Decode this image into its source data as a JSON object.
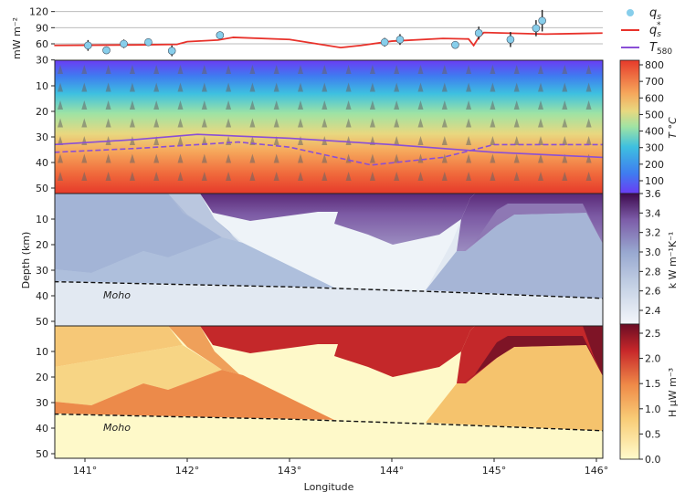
{
  "chart_data": [
    {
      "type": "scatter",
      "panel": "surface heat flow",
      "ylabel": "mW m⁻²",
      "ylim": [
        30,
        125
      ],
      "yticks": [
        "30",
        "60",
        "90",
        "120"
      ],
      "grid": true,
      "legend": {
        "placement": "right",
        "entries": [
          "q_s",
          "q_s*",
          "T_580"
        ]
      },
      "series": [
        {
          "name": "q_s",
          "kind": "points",
          "color": "#87ceeb",
          "x": [
            141.03,
            141.21,
            141.38,
            141.62,
            141.85,
            142.32,
            143.93,
            144.08,
            144.62,
            144.85,
            145.16,
            145.41,
            145.47
          ],
          "y": [
            57,
            48,
            60,
            63,
            47,
            76,
            63,
            68,
            58,
            80,
            68,
            89,
            103
          ],
          "err": [
            10,
            4,
            8,
            5,
            10,
            7,
            8,
            10,
            7,
            12,
            14,
            15,
            20
          ]
        },
        {
          "name": "q_s*",
          "kind": "line",
          "color": "#e8322b",
          "x": [
            140.7,
            141.5,
            141.9,
            142.0,
            142.3,
            142.45,
            143.0,
            143.5,
            143.7,
            144.0,
            144.5,
            144.75,
            144.8,
            144.85,
            144.9,
            145.5,
            146.06
          ],
          "y": [
            57,
            58,
            59,
            64,
            67,
            72,
            68,
            53,
            57,
            65,
            70,
            69,
            57,
            72,
            81,
            78,
            80
          ]
        }
      ]
    },
    {
      "type": "heatmap",
      "panel": "temperature",
      "colorbar": {
        "label": "T °C",
        "ticks": [
          "100",
          "200",
          "300",
          "400",
          "500",
          "600",
          "700",
          "800"
        ],
        "range": [
          50,
          820
        ]
      },
      "series": [
        {
          "name": "T_580",
          "kind": "line",
          "color": "#8a4fd6",
          "x": [
            140.7,
            141.5,
            142.1,
            143.0,
            144.0,
            145.0,
            146.06
          ],
          "y": [
            33,
            31,
            29,
            30.5,
            33,
            36,
            38
          ]
        },
        {
          "kind": "dashed-line",
          "color": "#8a4fd6",
          "x": [
            140.7,
            141.5,
            142.5,
            143.0,
            143.8,
            144.5,
            145.0,
            146.06
          ],
          "y": [
            36,
            34.5,
            32,
            34,
            41,
            38,
            33,
            33
          ]
        }
      ]
    },
    {
      "type": "heatmap",
      "panel": "conductivity",
      "annotation": "Moho",
      "colorbar": {
        "label": "k  W m⁻¹K⁻¹",
        "ticks": [
          "2.4",
          "2.6",
          "2.8",
          "3.0",
          "3.2",
          "3.4",
          "3.6"
        ]
      }
    },
    {
      "type": "heatmap",
      "panel": "heat production",
      "annotation": "Moho",
      "colorbar": {
        "label": "H  μW m⁻³",
        "ticks": [
          "0.0",
          "0.5",
          "1.0",
          "1.5",
          "2.0",
          "2.5"
        ]
      }
    }
  ],
  "axes": {
    "xlabel": "Longitude",
    "xticks": [
      "141°",
      "142°",
      "143°",
      "144°",
      "145°",
      "146°"
    ],
    "xlim": [
      140.7,
      146.06
    ],
    "ylabel": "Depth (km)",
    "depth_ticks": [
      "10",
      "20",
      "30",
      "40",
      "50"
    ],
    "ylim_depth": [
      0,
      52
    ]
  },
  "moho": {
    "label": "Moho",
    "x": [
      140.7,
      143.0,
      144.5,
      146.06
    ],
    "depth": [
      34.5,
      36.5,
      38.5,
      41
    ]
  },
  "legend": {
    "qs": "q",
    "qs_sub": "s",
    "qsstar": "q",
    "qsstar_sub": "s",
    "qsstar_sup": "*",
    "t580": "T",
    "t580_sub": "580"
  },
  "colors": {
    "qs": "#87ceeb",
    "qsstar": "#e8322b",
    "t580": "#8a4fd6"
  }
}
